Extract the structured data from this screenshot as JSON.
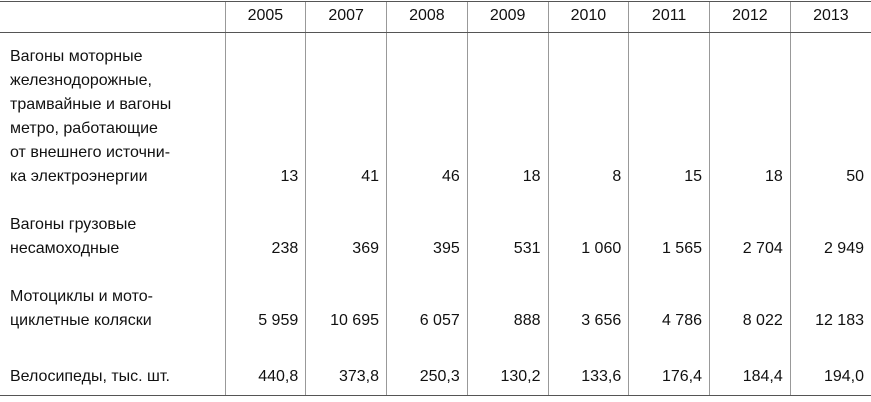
{
  "table": {
    "header": [
      "",
      "2005",
      "2007",
      "2008",
      "2009",
      "2010",
      "2011",
      "2012",
      "2013"
    ],
    "rows": [
      [
        "Вагоны моторные\nжелезнодорожные,\nтрамвайные и вагоны\nметро, работающие\nот внешнего источни-\nка электроэнергии",
        "13",
        "41",
        "46",
        "18",
        "8",
        "15",
        "18",
        "50"
      ],
      [
        "Вагоны грузовые\nнесамоходные",
        "238",
        "369",
        "395",
        "531",
        "1 060",
        "1 565",
        "2 704",
        "2 949"
      ],
      [
        "Мотоциклы и мото-\nциклетные коляски",
        "5 959",
        "10 695",
        "6 057",
        "888",
        "3 656",
        "4 786",
        "8 022",
        "12 183"
      ],
      [
        "Велосипеды, тыс. шт.",
        "440,8",
        "373,8",
        "250,3",
        "130,2",
        "133,6",
        "176,4",
        "184,4",
        "194,0"
      ]
    ]
  }
}
